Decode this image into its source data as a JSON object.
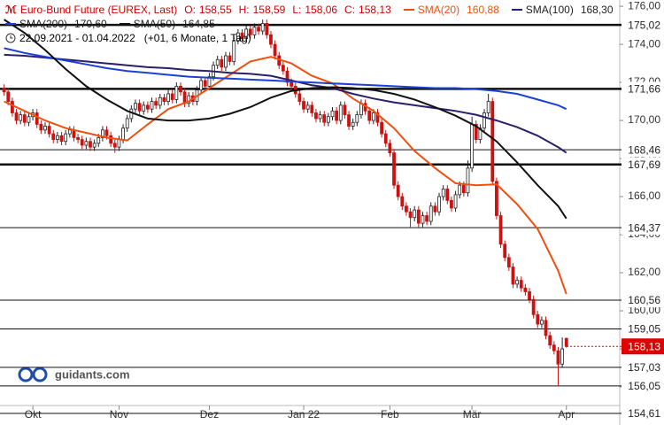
{
  "chart_data": {
    "type": "candlestick",
    "title": "Euro-Bund Future (EUREX, Last)",
    "ohlc": [
      {
        "name": "O:",
        "value": 158.55,
        "label": "158,55"
      },
      {
        "name": "H:",
        "value": 158.59,
        "label": "158,59"
      },
      {
        "name": "L:",
        "value": 158.06,
        "label": "158,06"
      },
      {
        "name": "C:",
        "value": 158.13,
        "label": "158,13"
      }
    ],
    "period": "22.09.2021 - 01.04.2022",
    "period_note": "(+01, 6 Monate, 1 Tag)",
    "watermark": "guidants.com",
    "up_color": "#222222",
    "down_color": "#cc1111",
    "candles": [
      [
        171.7,
        171.9,
        171.3,
        171.5
      ],
      [
        171.5,
        171.7,
        170.8,
        171.0
      ],
      [
        171.0,
        171.2,
        170.2,
        170.4
      ],
      [
        170.4,
        170.6,
        169.8,
        170.0
      ],
      [
        170.0,
        170.5,
        169.8,
        170.3
      ],
      [
        170.3,
        170.5,
        169.7,
        169.9
      ],
      [
        169.9,
        170.4,
        169.7,
        170.2
      ],
      [
        170.2,
        170.6,
        170.0,
        170.4
      ],
      [
        170.4,
        170.6,
        169.6,
        169.8
      ],
      [
        169.8,
        170.0,
        169.3,
        169.5
      ],
      [
        169.5,
        169.9,
        169.3,
        169.7
      ],
      [
        169.7,
        169.9,
        169.1,
        169.3
      ],
      [
        169.3,
        169.5,
        168.8,
        169.0
      ],
      [
        169.0,
        169.4,
        168.8,
        169.2
      ],
      [
        169.2,
        169.4,
        168.7,
        168.9
      ],
      [
        168.9,
        169.5,
        168.7,
        169.3
      ],
      [
        169.3,
        169.7,
        169.1,
        169.5
      ],
      [
        169.5,
        169.7,
        168.9,
        169.1
      ],
      [
        169.1,
        169.3,
        168.8,
        169.0
      ],
      [
        169.0,
        169.2,
        168.5,
        168.7
      ],
      [
        168.7,
        169.1,
        168.5,
        168.9
      ],
      [
        168.9,
        169.1,
        168.4,
        168.6
      ],
      [
        168.6,
        169.0,
        168.4,
        168.8
      ],
      [
        168.8,
        169.3,
        168.6,
        169.1
      ],
      [
        169.1,
        169.7,
        168.9,
        169.5
      ],
      [
        169.5,
        169.7,
        169.0,
        169.2
      ],
      [
        169.2,
        169.4,
        168.6,
        168.8
      ],
      [
        168.8,
        169.0,
        168.3,
        168.6
      ],
      [
        168.6,
        169.2,
        168.4,
        169.0
      ],
      [
        169.0,
        169.8,
        168.8,
        169.6
      ],
      [
        169.6,
        170.3,
        169.4,
        170.1
      ],
      [
        170.1,
        170.8,
        169.9,
        170.6
      ],
      [
        170.6,
        171.1,
        170.4,
        170.9
      ],
      [
        170.9,
        171.1,
        170.3,
        170.5
      ],
      [
        170.5,
        171.0,
        170.3,
        170.8
      ],
      [
        170.8,
        171.0,
        170.4,
        170.6
      ],
      [
        170.6,
        171.2,
        170.4,
        171.0
      ],
      [
        171.0,
        171.2,
        170.6,
        170.8
      ],
      [
        170.8,
        171.4,
        170.6,
        171.2
      ],
      [
        171.2,
        171.4,
        170.8,
        171.0
      ],
      [
        171.0,
        171.6,
        170.8,
        171.4
      ],
      [
        171.4,
        171.6,
        170.9,
        171.1
      ],
      [
        171.1,
        172.0,
        170.9,
        171.8
      ],
      [
        171.8,
        172.0,
        171.3,
        171.5
      ],
      [
        171.5,
        171.7,
        170.7,
        170.9
      ],
      [
        170.9,
        171.5,
        170.7,
        171.3
      ],
      [
        171.3,
        171.5,
        170.8,
        171.0
      ],
      [
        171.0,
        171.8,
        170.8,
        171.6
      ],
      [
        171.6,
        172.3,
        171.4,
        172.1
      ],
      [
        172.1,
        172.3,
        171.6,
        171.8
      ],
      [
        171.8,
        172.5,
        171.6,
        172.3
      ],
      [
        172.3,
        173.1,
        172.1,
        172.9
      ],
      [
        172.9,
        173.4,
        172.7,
        173.2
      ],
      [
        173.2,
        173.4,
        172.6,
        172.8
      ],
      [
        172.8,
        173.6,
        172.6,
        173.4
      ],
      [
        173.4,
        173.6,
        172.9,
        173.1
      ],
      [
        173.1,
        174.4,
        172.9,
        174.2
      ],
      [
        174.2,
        174.8,
        174.0,
        174.6
      ],
      [
        174.6,
        174.8,
        174.1,
        174.3
      ],
      [
        174.3,
        175.0,
        174.1,
        174.8
      ],
      [
        174.8,
        175.0,
        174.3,
        174.5
      ],
      [
        174.5,
        175.1,
        174.3,
        174.9
      ],
      [
        174.9,
        175.1,
        174.5,
        174.7
      ],
      [
        174.7,
        175.3,
        174.5,
        175.1
      ],
      [
        175.1,
        175.3,
        174.3,
        174.5
      ],
      [
        174.5,
        174.7,
        173.8,
        174.0
      ],
      [
        174.0,
        174.2,
        173.2,
        173.4
      ],
      [
        173.4,
        173.6,
        172.7,
        172.9
      ],
      [
        172.9,
        173.1,
        172.4,
        172.6
      ],
      [
        172.6,
        172.8,
        171.8,
        172.0
      ],
      [
        172.0,
        172.2,
        171.6,
        171.8
      ],
      [
        171.8,
        172.0,
        171.2,
        171.4
      ],
      [
        171.4,
        171.6,
        170.8,
        171.0
      ],
      [
        171.0,
        171.2,
        170.4,
        170.6
      ],
      [
        170.6,
        171.0,
        170.4,
        170.8
      ],
      [
        170.8,
        171.0,
        170.2,
        170.4
      ],
      [
        170.4,
        170.6,
        169.9,
        170.1
      ],
      [
        170.1,
        170.5,
        169.9,
        170.3
      ],
      [
        170.3,
        170.5,
        169.7,
        169.9
      ],
      [
        169.9,
        170.4,
        169.7,
        170.2
      ],
      [
        170.2,
        170.7,
        170.0,
        170.5
      ],
      [
        170.5,
        170.7,
        169.8,
        170.0
      ],
      [
        170.0,
        171.0,
        169.8,
        170.8
      ],
      [
        170.8,
        171.0,
        170.1,
        170.3
      ],
      [
        170.3,
        170.5,
        169.5,
        169.7
      ],
      [
        169.7,
        170.1,
        169.5,
        169.9
      ],
      [
        169.9,
        170.5,
        169.7,
        170.3
      ],
      [
        170.3,
        171.1,
        170.1,
        170.9
      ],
      [
        170.9,
        171.1,
        170.3,
        170.5
      ],
      [
        170.5,
        170.7,
        169.8,
        170.0
      ],
      [
        170.0,
        170.6,
        169.8,
        170.4
      ],
      [
        170.4,
        170.6,
        169.7,
        169.9
      ],
      [
        169.9,
        170.1,
        169.1,
        169.3
      ],
      [
        169.3,
        169.5,
        168.6,
        168.8
      ],
      [
        168.8,
        169.0,
        168.1,
        168.3
      ],
      [
        168.3,
        168.5,
        166.4,
        166.6
      ],
      [
        166.6,
        166.8,
        165.8,
        166.0
      ],
      [
        166.0,
        166.2,
        165.3,
        165.5
      ],
      [
        165.5,
        165.7,
        165.0,
        165.2
      ],
      [
        165.2,
        165.4,
        164.4,
        164.9
      ],
      [
        164.9,
        165.5,
        164.7,
        165.3
      ],
      [
        165.3,
        165.5,
        164.4,
        164.6
      ],
      [
        164.6,
        165.2,
        164.4,
        165.0
      ],
      [
        165.0,
        165.2,
        164.5,
        164.7
      ],
      [
        164.7,
        165.7,
        164.5,
        165.5
      ],
      [
        165.5,
        165.7,
        165.0,
        165.2
      ],
      [
        165.2,
        166.2,
        165.0,
        166.0
      ],
      [
        166.0,
        166.6,
        165.8,
        166.4
      ],
      [
        166.4,
        166.6,
        165.6,
        165.8
      ],
      [
        165.8,
        166.0,
        165.2,
        165.4
      ],
      [
        165.4,
        166.3,
        165.2,
        166.1
      ],
      [
        166.1,
        166.8,
        165.9,
        166.6
      ],
      [
        166.6,
        166.8,
        166.0,
        166.2
      ],
      [
        166.2,
        167.9,
        166.0,
        167.5
      ],
      [
        167.5,
        170.2,
        167.3,
        169.8
      ],
      [
        169.8,
        170.0,
        168.8,
        169.0
      ],
      [
        169.0,
        169.8,
        168.8,
        169.6
      ],
      [
        169.6,
        170.6,
        169.4,
        170.4
      ],
      [
        170.4,
        171.4,
        170.2,
        171.0
      ],
      [
        171.0,
        171.2,
        166.6,
        166.8
      ],
      [
        166.8,
        167.0,
        164.8,
        165.0
      ],
      [
        165.0,
        165.2,
        163.3,
        163.5
      ],
      [
        163.5,
        163.7,
        162.6,
        162.8
      ],
      [
        162.8,
        163.0,
        162.1,
        162.3
      ],
      [
        162.3,
        162.5,
        161.2,
        161.4
      ],
      [
        161.4,
        161.8,
        161.2,
        161.6
      ],
      [
        161.6,
        161.8,
        161.0,
        161.2
      ],
      [
        161.2,
        161.4,
        160.8,
        161.0
      ],
      [
        161.0,
        161.2,
        160.4,
        160.6
      ],
      [
        160.6,
        160.8,
        159.6,
        159.8
      ],
      [
        159.8,
        160.0,
        159.1,
        159.3
      ],
      [
        159.3,
        159.7,
        159.1,
        159.5
      ],
      [
        159.5,
        159.7,
        158.5,
        158.7
      ],
      [
        158.7,
        158.9,
        158.0,
        158.2
      ],
      [
        158.2,
        158.4,
        157.7,
        157.9
      ],
      [
        157.9,
        158.1,
        156.05,
        157.2
      ],
      [
        157.2,
        158.6,
        157.0,
        158.0
      ],
      [
        158.55,
        158.59,
        158.06,
        158.13
      ]
    ],
    "x": [
      0,
      5,
      10,
      15,
      20,
      25,
      30,
      35,
      40,
      45,
      50,
      55,
      60,
      65,
      70,
      75,
      80,
      85,
      90,
      95,
      100,
      105,
      110,
      115,
      120,
      125,
      130,
      135,
      137
    ],
    "series": [
      {
        "name": "SMA(20)",
        "color": "#f0500f",
        "last": {
          "value": 160.88,
          "label": "160,88"
        },
        "values": [
          171.0,
          170.5,
          170.0,
          169.6,
          169.35,
          169.1,
          168.95,
          169.8,
          170.6,
          171.0,
          171.7,
          172.4,
          173.1,
          173.35,
          173.0,
          172.35,
          171.95,
          171.15,
          170.5,
          169.6,
          168.4,
          167.5,
          166.7,
          166.6,
          166.65,
          165.6,
          164.3,
          162.1,
          160.88
        ]
      },
      {
        "name": "SMA(100)",
        "color": "#2a1f6b",
        "last": {
          "value": 168.3,
          "label": "168,30"
        },
        "values": [
          173.45,
          173.4,
          173.3,
          173.2,
          173.1,
          173.0,
          172.9,
          172.8,
          172.75,
          172.65,
          172.6,
          172.5,
          172.45,
          172.35,
          172.1,
          171.85,
          171.7,
          171.4,
          171.15,
          170.95,
          170.8,
          170.65,
          170.5,
          170.3,
          170.0,
          169.65,
          169.2,
          168.6,
          168.3
        ]
      },
      {
        "name": "SMA(200)",
        "color": "#1c3fd6",
        "last": {
          "value": 170.6,
          "label": "170,60"
        },
        "values": [
          173.8,
          173.55,
          173.35,
          173.15,
          172.95,
          172.75,
          172.6,
          172.5,
          172.4,
          172.3,
          172.25,
          172.2,
          172.15,
          172.1,
          172.05,
          172.0,
          171.95,
          171.9,
          171.85,
          171.8,
          171.75,
          171.7,
          171.7,
          171.65,
          171.55,
          171.4,
          171.1,
          170.8,
          170.6
        ]
      },
      {
        "name": "SMA(50)",
        "color": "#111111",
        "last": {
          "value": 164.85,
          "label": "164,85"
        },
        "values": [
          175.3,
          174.6,
          173.7,
          172.7,
          171.8,
          171.1,
          170.5,
          170.1,
          170.0,
          170.0,
          170.1,
          170.35,
          170.7,
          171.2,
          171.55,
          171.7,
          171.75,
          171.7,
          171.6,
          171.4,
          171.1,
          170.7,
          170.25,
          169.7,
          168.9,
          167.8,
          166.6,
          165.5,
          164.85
        ]
      }
    ],
    "xlim": [
      -1,
      150
    ],
    "ylim": [
      154.0,
      176.33
    ],
    "xticks": [
      {
        "value": 7,
        "label": "Okt"
      },
      {
        "value": 28,
        "label": "Nov"
      },
      {
        "value": 50,
        "label": "Dez"
      },
      {
        "value": 73,
        "label": "Jan 22"
      },
      {
        "value": 94,
        "label": "Feb"
      },
      {
        "value": 114,
        "label": "Mär"
      },
      {
        "value": 137,
        "label": "Apr"
      }
    ],
    "yticks": [
      {
        "value": 176,
        "label": "176,00"
      },
      {
        "value": 174,
        "label": "174,00"
      },
      {
        "value": 172,
        "label": "172,00"
      },
      {
        "value": 170,
        "label": "170,00"
      },
      {
        "value": 168,
        "label": "168,00"
      },
      {
        "value": 166,
        "label": "166,00"
      },
      {
        "value": 164,
        "label": "164,00"
      },
      {
        "value": 162,
        "label": "162,00"
      },
      {
        "value": 160,
        "label": "160,00"
      },
      {
        "value": 158,
        "label": "158,00"
      },
      {
        "value": 156,
        "label": "156,00"
      }
    ],
    "levels": [
      {
        "value": 175.02,
        "label": "175,02",
        "bold": true
      },
      {
        "value": 171.66,
        "label": "171,66",
        "bold": true
      },
      {
        "value": 168.46,
        "label": "168,46",
        "bold": false
      },
      {
        "value": 167.69,
        "label": "167,69",
        "bold": true
      },
      {
        "value": 164.37,
        "label": "164,37",
        "bold": false
      },
      {
        "value": 160.56,
        "label": "160,56",
        "bold": false
      },
      {
        "value": 159.05,
        "label": "159,05",
        "bold": false
      },
      {
        "value": 157.03,
        "label": "157,03",
        "bold": false
      },
      {
        "value": 156.05,
        "label": "156,05",
        "bold": false
      },
      {
        "value": 154.61,
        "label": "154,61",
        "bold": false
      }
    ],
    "current": {
      "value": 158.13,
      "label": "158,13",
      "color": "#e00000"
    }
  }
}
